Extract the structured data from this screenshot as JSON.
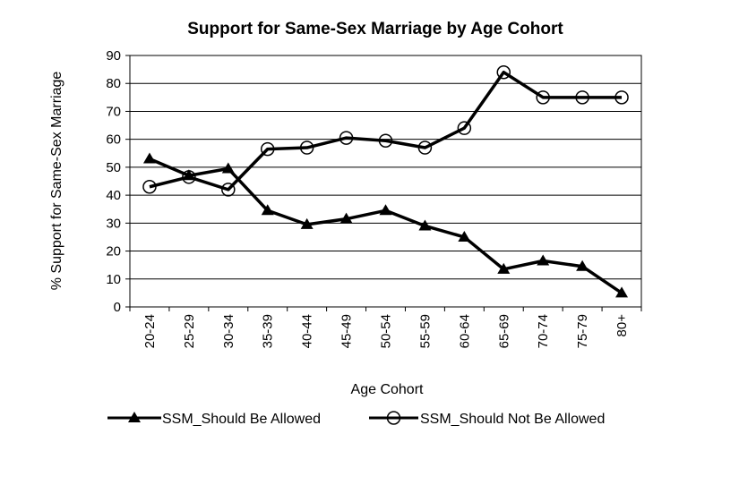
{
  "chart_data": {
    "type": "line",
    "title": "Support for Same-Sex Marriage by Age Cohort",
    "xlabel": "Age Cohort",
    "ylabel": "% Support for Same-Sex Marriage",
    "ylim": [
      0,
      90
    ],
    "yticks": [
      0,
      10,
      20,
      30,
      40,
      50,
      60,
      70,
      80,
      90
    ],
    "grid": true,
    "legend_position": "bottom",
    "categories": [
      "20-24",
      "25-29",
      "30-34",
      "35-39",
      "40-44",
      "45-49",
      "50-54",
      "55-59",
      "60-64",
      "65-69",
      "70-74",
      "75-79",
      "80+"
    ],
    "series": [
      {
        "name": "SSM_Should Be Allowed",
        "marker": "triangle",
        "color": "#000000",
        "values": [
          53,
          47,
          49.5,
          34.5,
          29.5,
          31.5,
          34.5,
          29,
          25,
          13.5,
          16.5,
          14.5,
          5
        ]
      },
      {
        "name": "SSM_Should Not Be Allowed",
        "marker": "circle",
        "color": "#000000",
        "values": [
          43,
          46.5,
          42,
          56.5,
          57,
          60.5,
          59.5,
          57,
          64,
          84,
          75,
          75,
          75
        ]
      }
    ]
  }
}
